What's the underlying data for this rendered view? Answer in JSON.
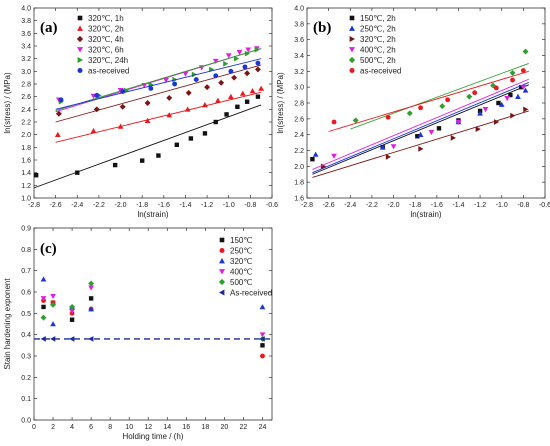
{
  "chart_data": [
    {
      "id": "a",
      "type": "scatter",
      "panel_label": "(a)",
      "xlabel": "ln(strain)",
      "ylabel": "ln(stress) / (MPa)",
      "xlim": [
        -2.8,
        -0.6
      ],
      "ylim": [
        1.0,
        4.0
      ],
      "xticks": [
        -2.8,
        -2.6,
        -2.4,
        -2.2,
        -2.0,
        -1.8,
        -1.6,
        -1.4,
        -1.2,
        -1.0,
        -0.8,
        -0.6
      ],
      "yticks": [
        1.0,
        1.2,
        1.4,
        1.6,
        1.8,
        2.0,
        2.2,
        2.4,
        2.6,
        2.8,
        3.0,
        3.2,
        3.4,
        3.6,
        3.8,
        4.0
      ],
      "legend_position": "top-left",
      "series": [
        {
          "name": "320℃, 1h",
          "color": "#111111",
          "marker": "square",
          "x": [
            -2.78,
            -2.4,
            -2.05,
            -1.8,
            -1.65,
            -1.48,
            -1.35,
            -1.22,
            -1.12,
            -1.02,
            -0.92,
            -0.83,
            -0.73
          ],
          "y": [
            1.36,
            1.4,
            1.52,
            1.59,
            1.67,
            1.84,
            1.94,
            2.02,
            2.2,
            2.32,
            2.44,
            2.52,
            2.6
          ],
          "fit": [
            [
              -2.8,
              1.16
            ],
            [
              -0.7,
              2.47
            ]
          ]
        },
        {
          "name": "320℃, 2h",
          "color": "#e8191f",
          "marker": "triangle-up",
          "x": [
            -2.58,
            -2.25,
            -2.0,
            -1.75,
            -1.55,
            -1.38,
            -1.22,
            -1.1,
            -0.98,
            -0.87,
            -0.78,
            -0.7
          ],
          "y": [
            2.0,
            2.06,
            2.13,
            2.22,
            2.31,
            2.4,
            2.47,
            2.54,
            2.6,
            2.65,
            2.69,
            2.73
          ],
          "fit": [
            [
              -2.6,
              1.88
            ],
            [
              -0.7,
              2.67
            ]
          ]
        },
        {
          "name": "320℃, 4h",
          "color": "#7b1616",
          "marker": "diamond",
          "x": [
            -2.57,
            -2.22,
            -1.98,
            -1.75,
            -1.55,
            -1.37,
            -1.2,
            -1.07,
            -0.95,
            -0.83,
            -0.73
          ],
          "y": [
            2.33,
            2.4,
            2.44,
            2.5,
            2.58,
            2.66,
            2.75,
            2.82,
            2.9,
            2.97,
            3.03
          ],
          "fit": [
            [
              -2.6,
              2.2
            ],
            [
              -0.7,
              3.1
            ]
          ]
        },
        {
          "name": "320℃, 6h",
          "color": "#e020e0",
          "marker": "triangle-down",
          "x": [
            -2.57,
            -2.25,
            -2.0,
            -1.78,
            -1.58,
            -1.4,
            -1.25,
            -1.12,
            -1.0,
            -0.9,
            -0.82,
            -0.74
          ],
          "y": [
            2.55,
            2.61,
            2.7,
            2.78,
            2.86,
            2.96,
            3.06,
            3.16,
            3.25,
            3.3,
            3.34,
            3.36
          ],
          "fit": [
            [
              -2.6,
              2.36
            ],
            [
              -0.7,
              3.36
            ]
          ]
        },
        {
          "name": "320℃, 24h",
          "color": "#2e9e2e",
          "marker": "triangle-right",
          "x": [
            -2.55,
            -2.2,
            -1.95,
            -1.72,
            -1.5,
            -1.32,
            -1.16,
            -1.03,
            -0.93,
            -0.83,
            -0.74
          ],
          "y": [
            2.52,
            2.62,
            2.7,
            2.79,
            2.87,
            2.95,
            3.03,
            3.12,
            3.2,
            3.28,
            3.34
          ],
          "fit": [
            [
              -2.6,
              2.38
            ],
            [
              -0.7,
              3.36
            ]
          ]
        },
        {
          "name": "as-received",
          "color": "#1a35d8",
          "marker": "circle",
          "x": [
            -2.55,
            -2.22,
            -1.98,
            -1.72,
            -1.5,
            -1.3,
            -1.12,
            -0.98,
            -0.85,
            -0.73
          ],
          "y": [
            2.55,
            2.62,
            2.68,
            2.73,
            2.8,
            2.87,
            2.93,
            3.0,
            3.07,
            3.13
          ],
          "fit": [
            [
              -2.6,
              2.4
            ],
            [
              -0.7,
              3.2
            ]
          ]
        }
      ]
    },
    {
      "id": "b",
      "type": "scatter",
      "panel_label": "(b)",
      "xlabel": "ln(strain)",
      "ylabel": "ln(stress) / (MPa)",
      "xlim": [
        -2.8,
        -0.6
      ],
      "ylim": [
        1.6,
        4.0
      ],
      "xticks": [
        -2.8,
        -2.6,
        -2.4,
        -2.2,
        -2.0,
        -1.8,
        -1.6,
        -1.4,
        -1.2,
        -1.0,
        -0.8,
        -0.6
      ],
      "yticks": [
        1.6,
        1.8,
        2.0,
        2.2,
        2.4,
        2.6,
        2.8,
        3.0,
        3.2,
        3.4,
        3.6,
        3.8,
        4.0
      ],
      "legend_position": "top-left",
      "series": [
        {
          "name": "150℃, 2h",
          "color": "#111111",
          "marker": "square",
          "x": [
            -2.75,
            -2.1,
            -1.78,
            -1.58,
            -1.4,
            -1.2,
            -1.03,
            -0.92,
            -0.82
          ],
          "y": [
            2.09,
            2.24,
            2.38,
            2.48,
            2.58,
            2.7,
            2.8,
            2.9,
            3.0
          ],
          "fit": [
            [
              -2.75,
              1.9
            ],
            [
              -0.75,
              3.03
            ]
          ]
        },
        {
          "name": "250℃, 2h",
          "color": "#1a35d8",
          "marker": "triangle-up",
          "x": [
            -2.72,
            -2.1,
            -1.75,
            -1.4,
            -1.2,
            -1.0,
            -0.85,
            -0.78
          ],
          "y": [
            2.15,
            2.24,
            2.4,
            2.56,
            2.67,
            2.78,
            2.88,
            2.96
          ],
          "fit": [
            [
              -2.75,
              1.92
            ],
            [
              -0.75,
              3.06
            ]
          ]
        },
        {
          "name": "320℃, 2h",
          "color": "#7b1616",
          "marker": "triangle-right",
          "x": [
            -2.65,
            -2.05,
            -1.75,
            -1.45,
            -1.22,
            -1.05,
            -0.9,
            -0.78
          ],
          "y": [
            2.0,
            2.12,
            2.22,
            2.36,
            2.47,
            2.56,
            2.64,
            2.72
          ],
          "fit": [
            [
              -2.75,
              1.86
            ],
            [
              -0.75,
              2.7
            ]
          ]
        },
        {
          "name": "400℃, 2h",
          "color": "#e020e0",
          "marker": "triangle-down",
          "x": [
            -2.55,
            -2.0,
            -1.65,
            -1.4,
            -1.15,
            -0.95,
            -0.8
          ],
          "y": [
            2.13,
            2.25,
            2.43,
            2.56,
            2.72,
            2.86,
            3.0
          ],
          "fit": [
            [
              -2.75,
              1.96
            ],
            [
              -0.75,
              3.1
            ]
          ]
        },
        {
          "name": "500℃, 2h",
          "color": "#2e9e2e",
          "marker": "diamond",
          "x": [
            -2.35,
            -1.85,
            -1.55,
            -1.3,
            -1.08,
            -0.9,
            -0.78
          ],
          "y": [
            2.58,
            2.67,
            2.76,
            2.88,
            3.02,
            3.18,
            3.45
          ],
          "fit": [
            [
              -2.4,
              2.47
            ],
            [
              -0.75,
              3.3
            ]
          ]
        },
        {
          "name": "as-received",
          "color": "#e8191f",
          "marker": "circle",
          "x": [
            -2.55,
            -2.05,
            -1.75,
            -1.5,
            -1.25,
            -1.05,
            -0.9,
            -0.8
          ],
          "y": [
            2.56,
            2.62,
            2.74,
            2.84,
            2.93,
            2.99,
            3.09,
            3.21
          ],
          "fit": [
            [
              -2.6,
              2.44
            ],
            [
              -0.75,
              3.2
            ]
          ]
        }
      ]
    },
    {
      "id": "c",
      "type": "scatter",
      "panel_label": "(c)",
      "xlabel": "Holding time / (h)",
      "ylabel": "Stain hardening exponent",
      "xlim": [
        0,
        25
      ],
      "ylim": [
        0.0,
        0.9
      ],
      "xticks": [
        0,
        2,
        4,
        6,
        8,
        10,
        12,
        14,
        16,
        18,
        20,
        22,
        24
      ],
      "yticks": [
        0.0,
        0.1,
        0.2,
        0.3,
        0.4,
        0.5,
        0.6,
        0.7,
        0.8,
        0.9
      ],
      "legend_position": "top-right",
      "reference_line": {
        "y": 0.38,
        "color": "#1a2a9a",
        "style": "dashed"
      },
      "series": [
        {
          "name": "150℃",
          "color": "#111111",
          "marker": "square",
          "x": [
            1,
            2,
            4,
            6,
            24
          ],
          "y": [
            0.53,
            0.55,
            0.47,
            0.57,
            0.35
          ]
        },
        {
          "name": "250℃",
          "color": "#e8191f",
          "marker": "circle",
          "x": [
            1,
            2,
            4,
            6,
            24
          ],
          "y": [
            0.56,
            0.55,
            0.5,
            0.52,
            0.3
          ]
        },
        {
          "name": "320℃",
          "color": "#1a35d8",
          "marker": "triangle-up",
          "x": [
            1,
            2,
            4,
            6,
            24
          ],
          "y": [
            0.66,
            0.45,
            0.53,
            0.52,
            0.53
          ]
        },
        {
          "name": "400℃",
          "color": "#e020e0",
          "marker": "triangle-down",
          "x": [
            1,
            2,
            4,
            6,
            24
          ],
          "y": [
            0.57,
            0.58,
            0.51,
            0.62,
            0.4
          ]
        },
        {
          "name": "500℃",
          "color": "#2e9e2e",
          "marker": "diamond",
          "x": [
            1,
            2,
            4,
            6,
            24
          ],
          "y": [
            0.48,
            0.54,
            0.53,
            0.64,
            0.38
          ]
        },
        {
          "name": "As-received",
          "color": "#1a2a9a",
          "marker": "triangle-left",
          "x": [
            1,
            2,
            4,
            6,
            24
          ],
          "y": [
            0.38,
            0.38,
            0.38,
            0.38,
            0.38
          ]
        }
      ]
    }
  ]
}
